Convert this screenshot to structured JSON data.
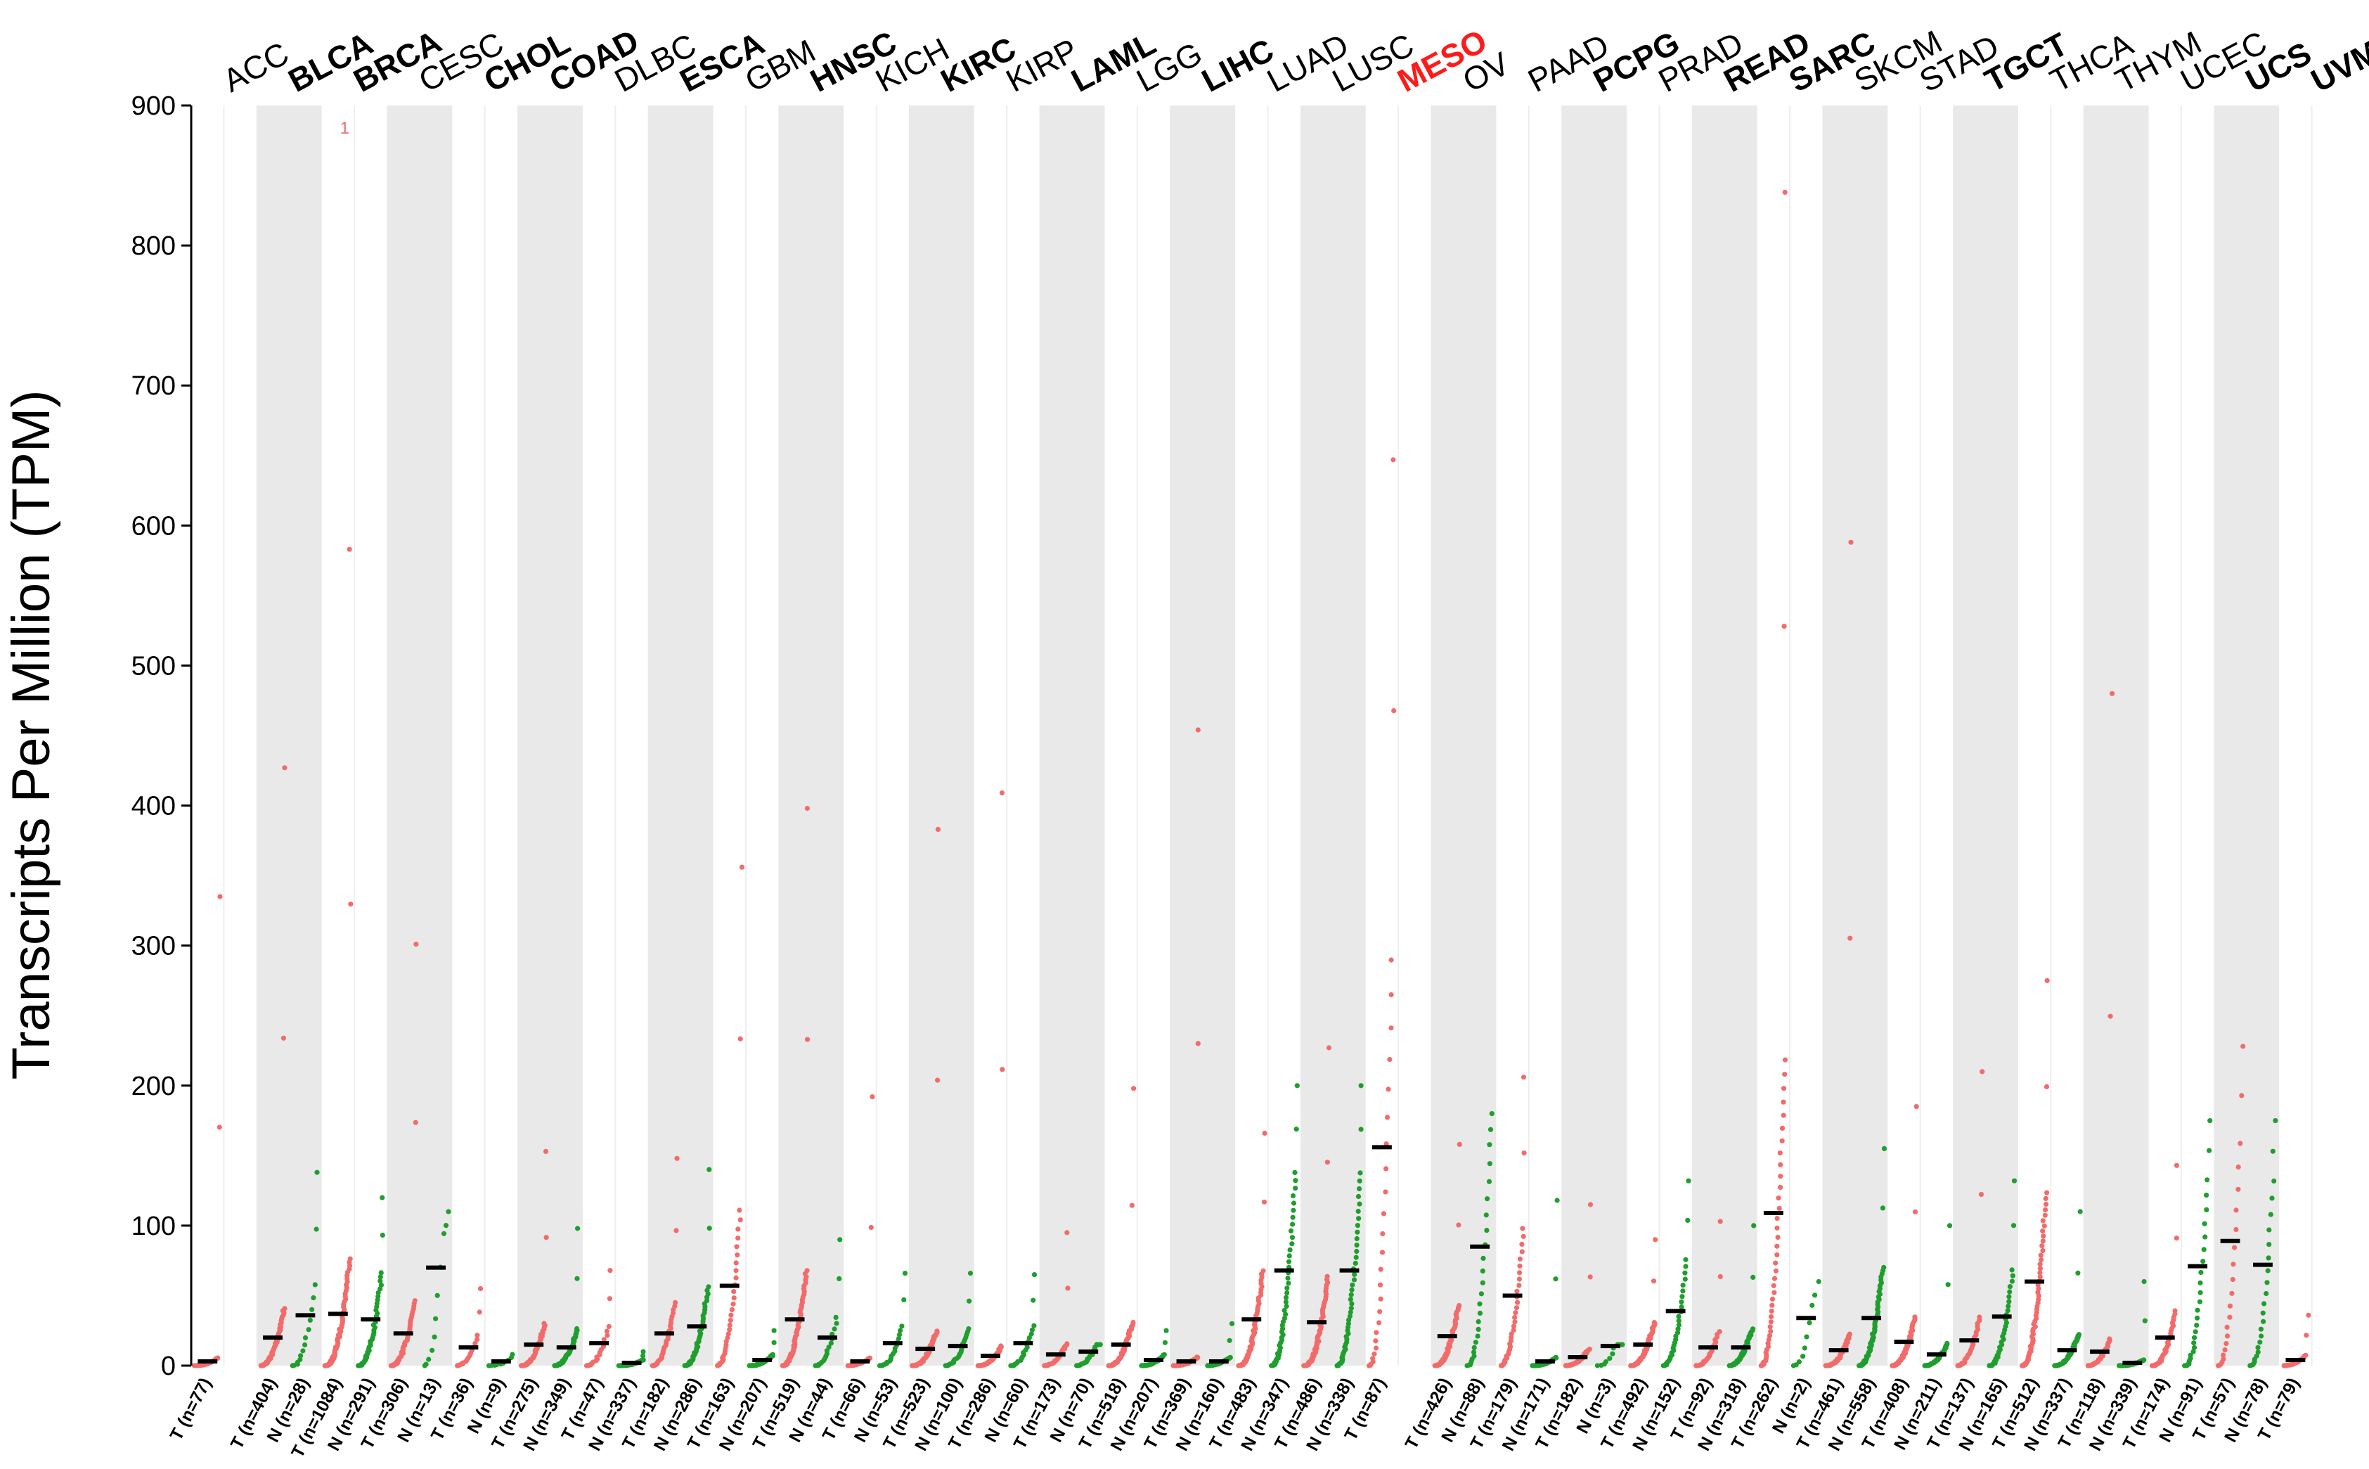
{
  "chart_data": {
    "type": "scatter",
    "ylabel": "Transcripts Per Million (TPM)",
    "ylim": [
      0,
      900
    ],
    "yticks": [
      0,
      100,
      200,
      300,
      400,
      500,
      600,
      700,
      800,
      900
    ],
    "outlier_marker": "1",
    "colors": {
      "tumor": "#f26b6b",
      "normal": "#1f9e2e",
      "median": "#000000",
      "band": "#e9e9e9"
    },
    "highlight": "MESO",
    "cancers": [
      {
        "name": "ACC",
        "bold": false,
        "groups": [
          {
            "label": "T (n=77)",
            "type": "T",
            "median": 3,
            "max": 335
          }
        ]
      },
      {
        "name": "BLCA",
        "bold": true,
        "groups": [
          {
            "label": "T (n=404)",
            "type": "T",
            "median": 20,
            "max": 427
          },
          {
            "label": "N (n=28)",
            "type": "N",
            "median": 36,
            "max": 138
          }
        ]
      },
      {
        "name": "BRCA",
        "bold": true,
        "groups": [
          {
            "label": "T (n=1084)",
            "type": "T",
            "median": 37,
            "max": 583
          },
          {
            "label": "N (n=291)",
            "type": "N",
            "median": 33,
            "max": 120
          }
        ]
      },
      {
        "name": "CESC",
        "bold": false,
        "groups": [
          {
            "label": "T (n=306)",
            "type": "T",
            "median": 23,
            "max": 301
          },
          {
            "label": "N (n=13)",
            "type": "N",
            "median": 70,
            "max": 110
          }
        ]
      },
      {
        "name": "CHOL",
        "bold": true,
        "groups": [
          {
            "label": "T (n=36)",
            "type": "T",
            "median": 13,
            "max": 55
          },
          {
            "label": "N (n=9)",
            "type": "N",
            "median": 3,
            "max": 8
          }
        ]
      },
      {
        "name": "COAD",
        "bold": true,
        "groups": [
          {
            "label": "T (n=275)",
            "type": "T",
            "median": 15,
            "max": 153
          },
          {
            "label": "N (n=349)",
            "type": "N",
            "median": 13,
            "max": 98
          }
        ]
      },
      {
        "name": "DLBC",
        "bold": false,
        "groups": [
          {
            "label": "T (n=47)",
            "type": "T",
            "median": 16,
            "max": 68
          },
          {
            "label": "N (n=337)",
            "type": "N",
            "median": 2,
            "max": 10
          }
        ]
      },
      {
        "name": "ESCA",
        "bold": true,
        "groups": [
          {
            "label": "T (n=182)",
            "type": "T",
            "median": 23,
            "max": 148
          },
          {
            "label": "N (n=286)",
            "type": "N",
            "median": 28,
            "max": 140
          }
        ]
      },
      {
        "name": "GBM",
        "bold": false,
        "groups": [
          {
            "label": "T (n=163)",
            "type": "T",
            "median": 57,
            "max": 356
          },
          {
            "label": "N (n=207)",
            "type": "N",
            "median": 4,
            "max": 25
          }
        ]
      },
      {
        "name": "HNSC",
        "bold": true,
        "groups": [
          {
            "label": "T (n=519)",
            "type": "T",
            "median": 33,
            "max": 398
          },
          {
            "label": "N (n=44)",
            "type": "N",
            "median": 20,
            "max": 90
          }
        ]
      },
      {
        "name": "KICH",
        "bold": false,
        "groups": [
          {
            "label": "T (n=66)",
            "type": "T",
            "median": 3,
            "max": 192
          },
          {
            "label": "N (n=53)",
            "type": "N",
            "median": 16,
            "max": 66
          }
        ]
      },
      {
        "name": "KIRC",
        "bold": true,
        "groups": [
          {
            "label": "T (n=523)",
            "type": "T",
            "median": 12,
            "max": 383
          },
          {
            "label": "N (n=100)",
            "type": "N",
            "median": 14,
            "max": 66
          }
        ]
      },
      {
        "name": "KIRP",
        "bold": false,
        "groups": [
          {
            "label": "T (n=286)",
            "type": "T",
            "median": 7,
            "max": 409
          },
          {
            "label": "N (n=60)",
            "type": "N",
            "median": 16,
            "max": 65
          }
        ]
      },
      {
        "name": "LAML",
        "bold": true,
        "groups": [
          {
            "label": "T (n=173)",
            "type": "T",
            "median": 8,
            "max": 95
          },
          {
            "label": "N (n=70)",
            "type": "N",
            "median": 10,
            "max": 15
          }
        ]
      },
      {
        "name": "LGG",
        "bold": false,
        "groups": [
          {
            "label": "T (n=518)",
            "type": "T",
            "median": 15,
            "max": 198
          },
          {
            "label": "N (n=207)",
            "type": "N",
            "median": 4,
            "max": 25
          }
        ]
      },
      {
        "name": "LIHC",
        "bold": true,
        "groups": [
          {
            "label": "T (n=369)",
            "type": "T",
            "median": 3,
            "max": 454
          },
          {
            "label": "N (n=160)",
            "type": "N",
            "median": 3,
            "max": 30
          }
        ]
      },
      {
        "name": "LUAD",
        "bold": false,
        "groups": [
          {
            "label": "T (n=483)",
            "type": "T",
            "median": 33,
            "max": 166
          },
          {
            "label": "N (n=347)",
            "type": "N",
            "median": 68,
            "max": 200
          }
        ]
      },
      {
        "name": "LUSC",
        "bold": false,
        "groups": [
          {
            "label": "T (n=486)",
            "type": "T",
            "median": 31,
            "max": 227
          },
          {
            "label": "N (n=338)",
            "type": "N",
            "median": 68,
            "max": 200
          }
        ]
      },
      {
        "name": "MESO",
        "bold": true,
        "groups": [
          {
            "label": "T (n=87)",
            "type": "T",
            "median": 156,
            "max": 647
          }
        ]
      },
      {
        "name": "OV",
        "bold": false,
        "groups": [
          {
            "label": "T (n=426)",
            "type": "T",
            "median": 21,
            "max": 158
          },
          {
            "label": "N (n=88)",
            "type": "N",
            "median": 85,
            "max": 180
          }
        ]
      },
      {
        "name": "PAAD",
        "bold": false,
        "groups": [
          {
            "label": "T (n=179)",
            "type": "T",
            "median": 50,
            "max": 206
          },
          {
            "label": "N (n=171)",
            "type": "N",
            "median": 3,
            "max": 118
          }
        ]
      },
      {
        "name": "PCPG",
        "bold": true,
        "groups": [
          {
            "label": "T (n=182)",
            "type": "T",
            "median": 6,
            "max": 115
          },
          {
            "label": "N (n=3)",
            "type": "N",
            "median": 14,
            "max": 15
          }
        ]
      },
      {
        "name": "PRAD",
        "bold": false,
        "groups": [
          {
            "label": "T (n=492)",
            "type": "T",
            "median": 15,
            "max": 90
          },
          {
            "label": "N (n=152)",
            "type": "N",
            "median": 39,
            "max": 132
          }
        ]
      },
      {
        "name": "READ",
        "bold": true,
        "groups": [
          {
            "label": "T (n=92)",
            "type": "T",
            "median": 13,
            "max": 103
          },
          {
            "label": "N (n=318)",
            "type": "N",
            "median": 13,
            "max": 100
          }
        ]
      },
      {
        "name": "SARC",
        "bold": true,
        "groups": [
          {
            "label": "T (n=262)",
            "type": "T",
            "median": 109,
            "max": 838
          },
          {
            "label": "N (n=2)",
            "type": "N",
            "median": 34,
            "max": 60
          }
        ]
      },
      {
        "name": "SKCM",
        "bold": false,
        "groups": [
          {
            "label": "T (n=461)",
            "type": "T",
            "median": 11,
            "max": 588
          },
          {
            "label": "N (n=558)",
            "type": "N",
            "median": 34,
            "max": 155
          }
        ]
      },
      {
        "name": "STAD",
        "bold": false,
        "groups": [
          {
            "label": "T (n=408)",
            "type": "T",
            "median": 17,
            "max": 185
          },
          {
            "label": "N (n=211)",
            "type": "N",
            "median": 8,
            "max": 100
          }
        ]
      },
      {
        "name": "TGCT",
        "bold": true,
        "groups": [
          {
            "label": "T (n=137)",
            "type": "T",
            "median": 18,
            "max": 210
          },
          {
            "label": "N (n=165)",
            "type": "N",
            "median": 35,
            "max": 132
          }
        ]
      },
      {
        "name": "THCA",
        "bold": false,
        "groups": [
          {
            "label": "T (n=512)",
            "type": "T",
            "median": 60,
            "max": 275
          },
          {
            "label": "N (n=337)",
            "type": "N",
            "median": 11,
            "max": 110
          }
        ]
      },
      {
        "name": "THYM",
        "bold": false,
        "groups": [
          {
            "label": "T (n=118)",
            "type": "T",
            "median": 10,
            "max": 480
          },
          {
            "label": "N (n=339)",
            "type": "N",
            "median": 2,
            "max": 60
          }
        ]
      },
      {
        "name": "UCEC",
        "bold": false,
        "groups": [
          {
            "label": "T (n=174)",
            "type": "T",
            "median": 20,
            "max": 143
          },
          {
            "label": "N (n=91)",
            "type": "N",
            "median": 71,
            "max": 175
          }
        ]
      },
      {
        "name": "UCS",
        "bold": true,
        "groups": [
          {
            "label": "T (n=57)",
            "type": "T",
            "median": 89,
            "max": 228
          },
          {
            "label": "N (n=78)",
            "type": "N",
            "median": 72,
            "max": 175
          }
        ]
      },
      {
        "name": "UVM",
        "bold": true,
        "groups": [
          {
            "label": "T (n=79)",
            "type": "T",
            "median": 4,
            "max": 36
          }
        ]
      }
    ]
  }
}
